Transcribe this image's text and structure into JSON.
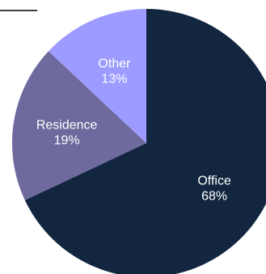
{
  "chart_data": {
    "type": "pie",
    "title": "",
    "slices": [
      {
        "label": "Office",
        "value": 68,
        "percent_label": "68%",
        "color": "#12263f"
      },
      {
        "label": "Residence",
        "value": 19,
        "percent_label": "19%",
        "color": "#6e6a9e"
      },
      {
        "label": "Other",
        "value": 13,
        "percent_label": "13%",
        "color": "#9d9bff"
      }
    ],
    "start_angle_deg": 0,
    "direction": "clockwise",
    "label_text_color": "#ffffff"
  }
}
